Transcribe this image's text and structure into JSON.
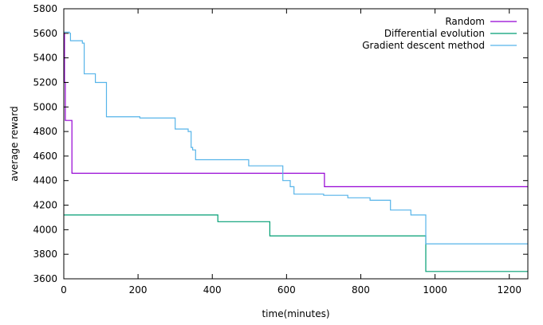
{
  "chart_data": {
    "type": "line",
    "title": "",
    "xlabel": "time(minutes)",
    "ylabel": "average reward",
    "xlim": [
      0,
      1250
    ],
    "ylim": [
      3600,
      5800
    ],
    "xticks": [
      0,
      200,
      400,
      600,
      800,
      1000,
      1200
    ],
    "yticks": [
      3600,
      3800,
      4000,
      4200,
      4400,
      4600,
      4800,
      5000,
      5200,
      5400,
      5600,
      5800
    ],
    "grid": false,
    "legend_position": "top-right",
    "series": [
      {
        "name": "Random",
        "color": "#9400d3",
        "step": true,
        "x": [
          0,
          2,
          4,
          6,
          8,
          22,
          700,
          702,
          1250
        ],
        "y": [
          5600,
          5200,
          4890,
          4890,
          4890,
          4460,
          4460,
          4350,
          4350
        ]
      },
      {
        "name": "Differential evolution",
        "color": "#009e73",
        "step": true,
        "x": [
          0,
          415,
          555,
          975,
          1250
        ],
        "y": [
          4120,
          4065,
          3950,
          3660,
          3660
        ]
      },
      {
        "name": "Gradient descent method",
        "color": "#56b4e9",
        "step": true,
        "x": [
          0,
          15,
          18,
          50,
          55,
          85,
          115,
          205,
          300,
          335,
          343,
          347,
          355,
          498,
          590,
          610,
          620,
          650,
          700,
          765,
          825,
          880,
          935,
          975,
          1250
        ],
        "y": [
          5610,
          5600,
          5540,
          5520,
          5270,
          5200,
          4920,
          4910,
          4820,
          4800,
          4670,
          4650,
          4570,
          4520,
          4400,
          4350,
          4290,
          4290,
          4280,
          4260,
          4240,
          4160,
          4120,
          3885,
          3885
        ]
      }
    ]
  }
}
